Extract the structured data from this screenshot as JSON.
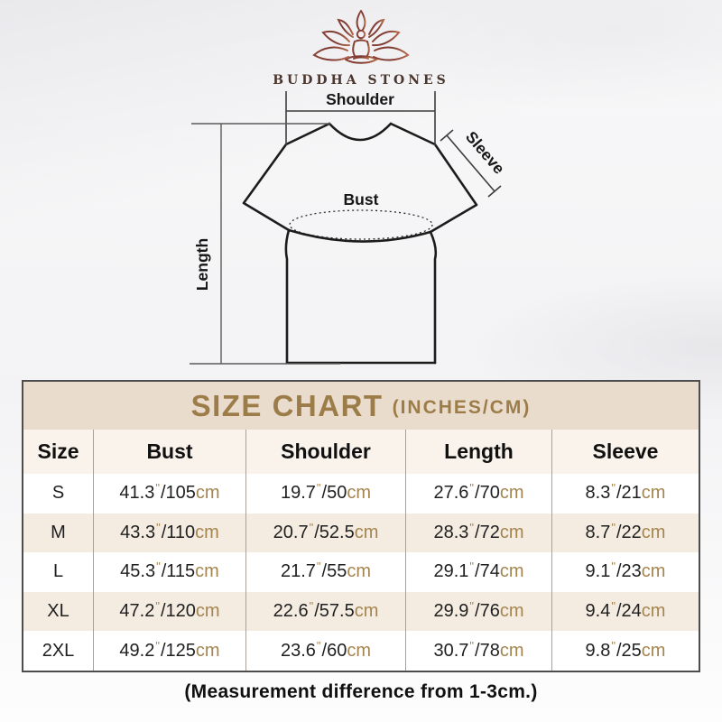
{
  "brand": {
    "name": "BUDDHA STONES"
  },
  "diagram": {
    "shoulder_label": "Shoulder",
    "sleeve_label": "Sleeve",
    "bust_label": "Bust",
    "length_label": "Length"
  },
  "size_chart": {
    "title": "SIZE CHART",
    "subtitle": "(INCHES/CM)",
    "columns": [
      "Size",
      "Bust",
      "Shoulder",
      "Length",
      "Sleeve"
    ],
    "units": {
      "inch_mark": "\"",
      "separator": "/",
      "cm": "cm"
    },
    "rows": [
      {
        "size": "S",
        "bust": {
          "in": "41.3",
          "cm": "105"
        },
        "shoulder": {
          "in": "19.7",
          "cm": "50"
        },
        "length": {
          "in": "27.6",
          "cm": "70"
        },
        "sleeve": {
          "in": "8.3",
          "cm": "21"
        }
      },
      {
        "size": "M",
        "bust": {
          "in": "43.3",
          "cm": "110"
        },
        "shoulder": {
          "in": "20.7",
          "cm": "52.5"
        },
        "length": {
          "in": "28.3",
          "cm": "72"
        },
        "sleeve": {
          "in": "8.7",
          "cm": "22"
        }
      },
      {
        "size": "L",
        "bust": {
          "in": "45.3",
          "cm": "115"
        },
        "shoulder": {
          "in": "21.7",
          "cm": "55"
        },
        "length": {
          "in": "29.1",
          "cm": "74"
        },
        "sleeve": {
          "in": "9.1",
          "cm": "23"
        }
      },
      {
        "size": "XL",
        "bust": {
          "in": "47.2",
          "cm": "120"
        },
        "shoulder": {
          "in": "22.6",
          "cm": "57.5"
        },
        "length": {
          "in": "29.9",
          "cm": "76"
        },
        "sleeve": {
          "in": "9.4",
          "cm": "24"
        }
      },
      {
        "size": "2XL",
        "bust": {
          "in": "49.2",
          "cm": "125"
        },
        "shoulder": {
          "in": "23.6",
          "cm": "60"
        },
        "length": {
          "in": "30.7",
          "cm": "78"
        },
        "sleeve": {
          "in": "9.8",
          "cm": "25"
        }
      }
    ],
    "footnote": "(Measurement difference from 1-3cm.)"
  },
  "chart_data": {
    "type": "table",
    "title": "SIZE CHART (INCHES/CM)",
    "columns": [
      "Size",
      "Bust",
      "Shoulder",
      "Length",
      "Sleeve"
    ],
    "rows": [
      [
        "S",
        "41.3\"/105cm",
        "19.7\"/50cm",
        "27.6\"/70cm",
        "8.3\"/21cm"
      ],
      [
        "M",
        "43.3\"/110cm",
        "20.7\"/52.5cm",
        "28.3\"/72cm",
        "8.7\"/22cm"
      ],
      [
        "L",
        "45.3\"/115cm",
        "21.7\"/55cm",
        "29.1\"/74cm",
        "9.1\"/23cm"
      ],
      [
        "XL",
        "47.2\"/120cm",
        "22.6\"/57.5cm",
        "29.9\"/76cm",
        "9.4\"/24cm"
      ],
      [
        "2XL",
        "49.2\"/125cm",
        "23.6\"/60cm",
        "30.7\"/78cm",
        "9.8\"/25cm"
      ]
    ],
    "footnote": "(Measurement difference from 1-3cm.)"
  },
  "colors": {
    "title_band_bg": "#e9dccc",
    "title_text": "#9c7d49",
    "unit_accent": "#a5854f",
    "row_alt_bg": "#f4ebe1",
    "header_row_bg": "#faf3ec",
    "table_border": "#4d4d4d",
    "logo_dark": "#7c3a32",
    "logo_light": "#b5694a",
    "brand_text": "#4a362e"
  }
}
